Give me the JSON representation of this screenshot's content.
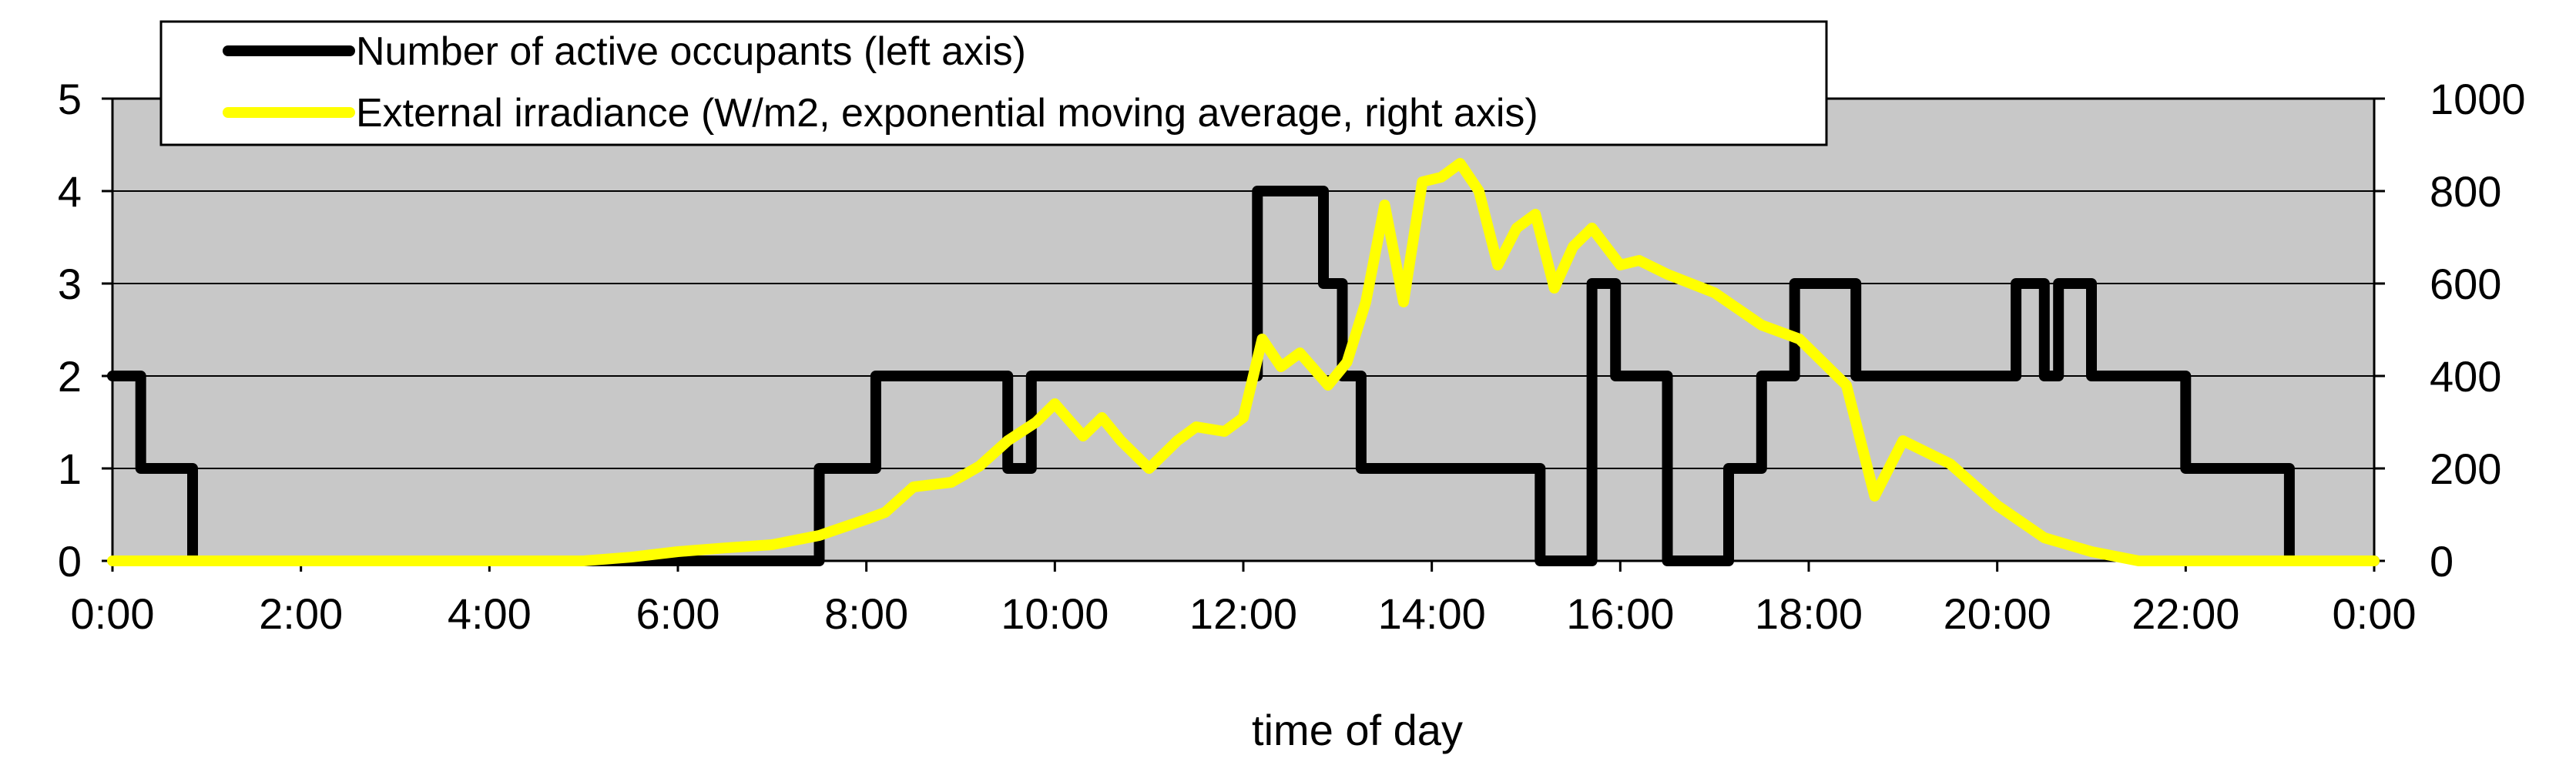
{
  "chart_data": {
    "type": "line",
    "xlabel": "time of day",
    "x_tick_labels": [
      "0:00",
      "2:00",
      "4:00",
      "6:00",
      "8:00",
      "10:00",
      "12:00",
      "14:00",
      "16:00",
      "18:00",
      "20:00",
      "22:00",
      "0:00"
    ],
    "xlim": [
      0,
      24
    ],
    "ylim_left": [
      0,
      5
    ],
    "ylim_right": [
      0,
      1000
    ],
    "left_ticks": [
      0,
      1,
      2,
      3,
      4,
      5
    ],
    "right_ticks": [
      0,
      200,
      400,
      600,
      800,
      1000
    ],
    "grid": true,
    "legend_position": "top-left",
    "plot_background": "#c8c8c8",
    "series": [
      {
        "name": "Number of active occupants (left axis)",
        "axis": "left",
        "color": "#000000",
        "step": true,
        "x": [
          0,
          0.3,
          0.85,
          7.5,
          8.1,
          9.5,
          9.75,
          12.15,
          12.85,
          13.05,
          13.25,
          15.15,
          15.7,
          15.95,
          16.5,
          17.15,
          17.5,
          17.85,
          18.5,
          20.2,
          20.5,
          20.65,
          21.0,
          21.1,
          21.5,
          22.0,
          22.9,
          23.1,
          24.0
        ],
        "y": [
          2,
          1,
          0,
          1,
          2,
          1,
          2,
          4,
          3,
          2,
          1,
          0,
          3,
          2,
          0,
          1,
          2,
          3,
          2,
          3,
          2,
          3,
          2,
          2,
          2,
          1,
          1,
          0,
          0
        ]
      },
      {
        "name": "External irradiance (W/m2, exponential moving average, right axis)",
        "axis": "right",
        "color": "#ffff00",
        "step": false,
        "x": [
          0,
          5.0,
          5.5,
          6.0,
          6.5,
          7.0,
          7.5,
          8.0,
          8.2,
          8.5,
          8.9,
          9.2,
          9.5,
          9.8,
          10.0,
          10.3,
          10.5,
          10.7,
          11.0,
          11.3,
          11.5,
          11.8,
          12.0,
          12.2,
          12.4,
          12.6,
          12.9,
          13.1,
          13.3,
          13.5,
          13.7,
          13.9,
          14.1,
          14.3,
          14.5,
          14.7,
          14.9,
          15.1,
          15.3,
          15.5,
          15.7,
          16.0,
          16.2,
          16.5,
          17.0,
          17.5,
          17.9,
          18.4,
          18.7,
          19.0,
          19.5,
          20.0,
          20.5,
          21.0,
          21.5,
          22.5,
          24.0
        ],
        "y": [
          0,
          0,
          8,
          20,
          28,
          35,
          55,
          90,
          105,
          160,
          170,
          205,
          260,
          300,
          340,
          270,
          310,
          260,
          200,
          260,
          290,
          280,
          310,
          480,
          420,
          450,
          380,
          430,
          560,
          770,
          560,
          820,
          830,
          860,
          800,
          640,
          720,
          750,
          590,
          680,
          720,
          640,
          650,
          620,
          580,
          510,
          480,
          380,
          140,
          260,
          210,
          120,
          50,
          20,
          0,
          0,
          0
        ]
      }
    ]
  }
}
